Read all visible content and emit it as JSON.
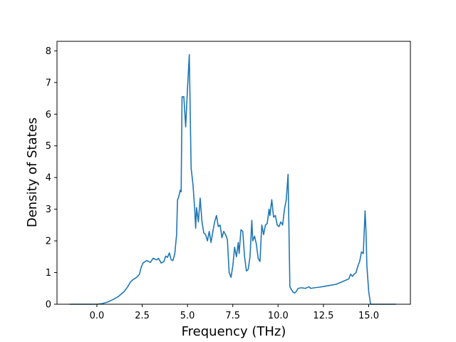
{
  "chart_data": {
    "type": "line",
    "xlabel": "Frequency (THz)",
    "ylabel": "Density of States",
    "xlim": [
      -2.2,
      17.3
    ],
    "ylim": [
      0,
      8.3
    ],
    "x_ticks": [
      0.0,
      2.5,
      5.0,
      7.5,
      10.0,
      12.5,
      15.0
    ],
    "x_tick_labels": [
      "0.0",
      "2.5",
      "5.0",
      "7.5",
      "10.0",
      "12.5",
      "15.0"
    ],
    "y_ticks": [
      0,
      1,
      2,
      3,
      4,
      5,
      6,
      7,
      8
    ],
    "y_tick_labels": [
      "0",
      "1",
      "2",
      "3",
      "4",
      "5",
      "6",
      "7",
      "8"
    ],
    "grid": false,
    "line_color": "#1f77b4",
    "series": [
      {
        "points": [
          [
            -1.5,
            0
          ],
          [
            -1.0,
            0
          ],
          [
            -0.5,
            0
          ],
          [
            0.0,
            0
          ],
          [
            0.3,
            0.02
          ],
          [
            0.6,
            0.07
          ],
          [
            0.9,
            0.15
          ],
          [
            1.2,
            0.25
          ],
          [
            1.5,
            0.4
          ],
          [
            1.7,
            0.55
          ],
          [
            1.85,
            0.7
          ],
          [
            2.0,
            0.78
          ],
          [
            2.2,
            0.85
          ],
          [
            2.35,
            0.95
          ],
          [
            2.45,
            1.18
          ],
          [
            2.55,
            1.3
          ],
          [
            2.75,
            1.38
          ],
          [
            2.95,
            1.32
          ],
          [
            3.1,
            1.45
          ],
          [
            3.3,
            1.4
          ],
          [
            3.4,
            1.45
          ],
          [
            3.55,
            1.3
          ],
          [
            3.7,
            1.35
          ],
          [
            3.8,
            1.52
          ],
          [
            3.9,
            1.48
          ],
          [
            4.0,
            1.62
          ],
          [
            4.1,
            1.4
          ],
          [
            4.2,
            1.38
          ],
          [
            4.3,
            1.6
          ],
          [
            4.4,
            2.2
          ],
          [
            4.45,
            3.3
          ],
          [
            4.5,
            3.35
          ],
          [
            4.6,
            3.6
          ],
          [
            4.65,
            3.55
          ],
          [
            4.7,
            6.55
          ],
          [
            4.8,
            6.55
          ],
          [
            4.9,
            5.6
          ],
          [
            5.0,
            6.8
          ],
          [
            5.1,
            7.88
          ],
          [
            5.2,
            4.3
          ],
          [
            5.3,
            3.8
          ],
          [
            5.4,
            3.0
          ],
          [
            5.45,
            2.4
          ],
          [
            5.5,
            3.05
          ],
          [
            5.6,
            2.6
          ],
          [
            5.7,
            3.35
          ],
          [
            5.8,
            2.6
          ],
          [
            5.9,
            2.25
          ],
          [
            6.0,
            2.2
          ],
          [
            6.1,
            2.0
          ],
          [
            6.2,
            2.3
          ],
          [
            6.3,
            1.95
          ],
          [
            6.4,
            2.3
          ],
          [
            6.5,
            2.6
          ],
          [
            6.6,
            2.8
          ],
          [
            6.7,
            2.45
          ],
          [
            6.8,
            2.5
          ],
          [
            6.9,
            2.1
          ],
          [
            7.0,
            2.3
          ],
          [
            7.1,
            2.2
          ],
          [
            7.2,
            2.05
          ],
          [
            7.3,
            1.0
          ],
          [
            7.4,
            0.85
          ],
          [
            7.5,
            1.2
          ],
          [
            7.6,
            1.8
          ],
          [
            7.7,
            1.5
          ],
          [
            7.8,
            1.95
          ],
          [
            7.85,
            1.6
          ],
          [
            7.95,
            2.35
          ],
          [
            8.05,
            2.3
          ],
          [
            8.15,
            1.5
          ],
          [
            8.25,
            1.05
          ],
          [
            8.35,
            1.1
          ],
          [
            8.45,
            1.5
          ],
          [
            8.55,
            2.65
          ],
          [
            8.6,
            2.0
          ],
          [
            8.7,
            2.15
          ],
          [
            8.8,
            1.9
          ],
          [
            8.9,
            1.45
          ],
          [
            9.0,
            1.35
          ],
          [
            9.1,
            2.5
          ],
          [
            9.2,
            2.2
          ],
          [
            9.3,
            2.5
          ],
          [
            9.4,
            2.55
          ],
          [
            9.5,
            3.0
          ],
          [
            9.55,
            2.8
          ],
          [
            9.65,
            3.3
          ],
          [
            9.75,
            2.75
          ],
          [
            9.85,
            2.8
          ],
          [
            9.95,
            2.5
          ],
          [
            10.05,
            2.45
          ],
          [
            10.15,
            2.6
          ],
          [
            10.25,
            2.5
          ],
          [
            10.35,
            3.0
          ],
          [
            10.45,
            3.3
          ],
          [
            10.55,
            4.1
          ],
          [
            10.65,
            0.55
          ],
          [
            10.8,
            0.4
          ],
          [
            10.9,
            0.35
          ],
          [
            11.0,
            0.4
          ],
          [
            11.1,
            0.5
          ],
          [
            11.3,
            0.52
          ],
          [
            11.5,
            0.5
          ],
          [
            11.7,
            0.55
          ],
          [
            11.8,
            0.5
          ],
          [
            12.0,
            0.52
          ],
          [
            12.3,
            0.54
          ],
          [
            12.6,
            0.57
          ],
          [
            12.9,
            0.6
          ],
          [
            13.2,
            0.63
          ],
          [
            13.5,
            0.7
          ],
          [
            13.7,
            0.75
          ],
          [
            13.9,
            0.8
          ],
          [
            14.0,
            0.95
          ],
          [
            14.1,
            0.88
          ],
          [
            14.2,
            0.95
          ],
          [
            14.3,
            1.0
          ],
          [
            14.4,
            1.2
          ],
          [
            14.5,
            1.35
          ],
          [
            14.6,
            1.65
          ],
          [
            14.7,
            1.6
          ],
          [
            14.8,
            2.95
          ],
          [
            14.85,
            2.3
          ],
          [
            14.9,
            1.2
          ],
          [
            15.0,
            0.4
          ],
          [
            15.1,
            0
          ],
          [
            15.5,
            0
          ],
          [
            16.0,
            0
          ],
          [
            16.5,
            0
          ]
        ]
      }
    ]
  }
}
